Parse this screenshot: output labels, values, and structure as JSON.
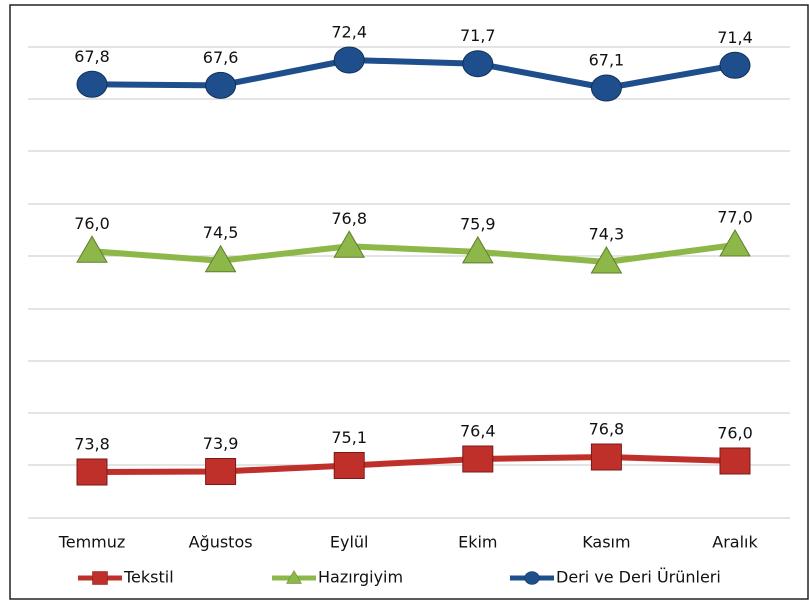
{
  "chart_data": {
    "type": "line",
    "categories": [
      "Temmuz",
      "Ağustos",
      "Eylül",
      "Ekim",
      "Kasım",
      "Aralık"
    ],
    "series": [
      {
        "name": "Tekstil",
        "color": "#c0302b",
        "marker": "square",
        "values": [
          73.8,
          73.9,
          75.1,
          76.4,
          76.8,
          76.0
        ],
        "value_labels": [
          "73,8",
          "73,9",
          "75,1",
          "76,4",
          "76,8",
          "76,0"
        ]
      },
      {
        "name": "Hazırgiyim",
        "color": "#8db849",
        "marker": "triangle",
        "values": [
          76.0,
          74.5,
          76.8,
          75.9,
          74.3,
          77.0
        ],
        "value_labels": [
          "76,0",
          "74,5",
          "76,8",
          "75,9",
          "74,3",
          "77,0"
        ]
      },
      {
        "name": "Deri ve Deri Ürünleri",
        "color": "#1f4e8c",
        "marker": "circle",
        "values": [
          67.8,
          67.6,
          72.4,
          71.7,
          67.1,
          71.4
        ],
        "value_labels": [
          "67,8",
          "67,6",
          "72,4",
          "71,7",
          "67,1",
          "71,4"
        ]
      }
    ]
  }
}
